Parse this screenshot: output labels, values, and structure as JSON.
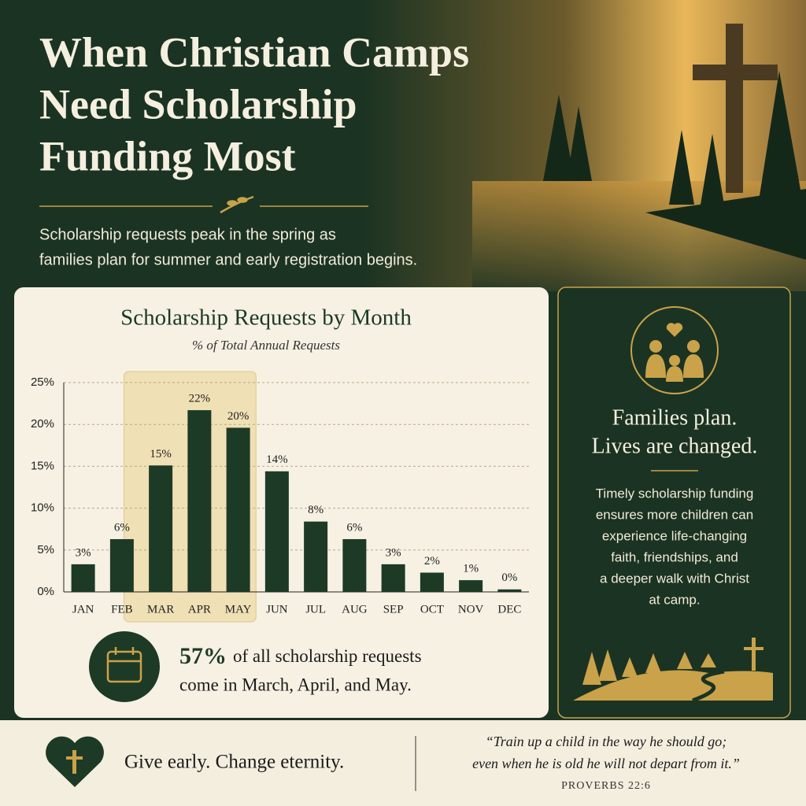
{
  "header": {
    "title_lines": [
      "When Christian Camps",
      "Need Scholarship",
      "Funding Most"
    ],
    "subtitle_lines": [
      "Scholarship requests peak in the spring as",
      "families plan for summer and early registration begins."
    ]
  },
  "chart_data": {
    "type": "bar",
    "title": "Scholarship Requests by Month",
    "subtitle": "% of Total Annual Requests",
    "categories": [
      "JAN",
      "FEB",
      "MAR",
      "APR",
      "MAY",
      "JUN",
      "JUL",
      "AUG",
      "SEP",
      "OCT",
      "NOV",
      "DEC"
    ],
    "values": [
      3.3,
      6.3,
      15.1,
      21.7,
      19.6,
      14.4,
      8.4,
      6.3,
      3.3,
      2.3,
      1.4,
      0.3
    ],
    "value_labels": [
      "3%",
      "6%",
      "15%",
      "22%",
      "20%",
      "14%",
      "8%",
      "6%",
      "3%",
      "2%",
      "1%",
      "0%"
    ],
    "color": "#1d3a26",
    "ylim": [
      0,
      25
    ],
    "yticks": [
      {
        "value": 0,
        "label": "0%"
      },
      {
        "value": 5,
        "label": "5%"
      },
      {
        "value": 10,
        "label": "10%"
      },
      {
        "value": 15,
        "label": "15%"
      },
      {
        "value": 20,
        "label": "20%"
      },
      {
        "value": 25,
        "label": "25%"
      }
    ],
    "grid": true,
    "highlight": {
      "from": 2,
      "to": 4,
      "color": "#efdcaa"
    }
  },
  "callout": {
    "stat": "57%",
    "text_lines": [
      "of all scholarship requests",
      "come in March, April, and May."
    ]
  },
  "side_panel": {
    "heading_lines": [
      "Families plan.",
      "Lives are changed."
    ],
    "body_lines": [
      "Timely scholarship funding",
      "ensures more children can",
      "experience life-changing",
      "faith, friendships, and",
      "a deeper walk with Christ",
      "at camp."
    ]
  },
  "footer": {
    "slogan": "Give early. Change eternity.",
    "quote_lines": [
      "“Train up a child in the way he should go;",
      "even when he is old he will not depart from it.”"
    ],
    "citation": "PROVERBS 22:6"
  }
}
